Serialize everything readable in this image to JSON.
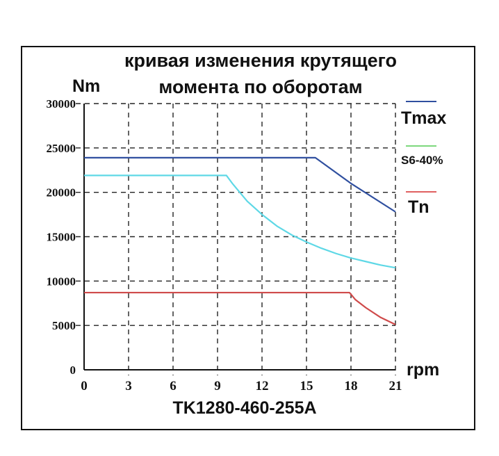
{
  "chart_data": {
    "type": "line",
    "title_lines": [
      "кривая изменения крутящего",
      "момента по оборотам"
    ],
    "ylabel": "Nm",
    "xlabel": "rpm",
    "caption": "TK1280-460-255A",
    "xlim": [
      0,
      21
    ],
    "ylim": [
      0,
      30000
    ],
    "xticks": [
      0,
      3,
      6,
      9,
      12,
      15,
      18,
      21
    ],
    "yticks": [
      0,
      5000,
      10000,
      15000,
      20000,
      25000,
      30000
    ],
    "grid": true,
    "legend_position": "right",
    "series": [
      {
        "name": "Tmax",
        "color": "#2f4f9f",
        "x": [
          0,
          15.6,
          18,
          21
        ],
        "y": [
          23900,
          23900,
          21000,
          17800
        ]
      },
      {
        "name": "S6-40%",
        "color": "#5ed8e6",
        "x": [
          0,
          9.6,
          10,
          11,
          12,
          13,
          14,
          15,
          16,
          17,
          18,
          19,
          20,
          21
        ],
        "y": [
          21900,
          21900,
          21000,
          19000,
          17500,
          16200,
          15200,
          14400,
          13700,
          13100,
          12600,
          12200,
          11800,
          11500
        ]
      },
      {
        "name": "Tn",
        "color": "#cf4a4a",
        "x": [
          0,
          17.9,
          18.3,
          19,
          20,
          21
        ],
        "y": [
          8700,
          8700,
          7900,
          7000,
          5900,
          5100
        ]
      }
    ],
    "legend_line_colors": {
      "Tmax": "#2f4f9f",
      "S6-40%": "#7dd87d",
      "Tn": "#e06060"
    }
  }
}
